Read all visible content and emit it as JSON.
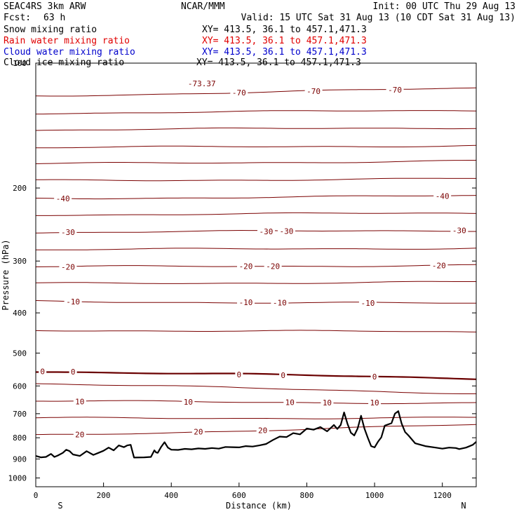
{
  "header": {
    "model": "SEAC4RS  3km ARW",
    "center": "NCAR/MMM",
    "init": "Init: 00 UTC Thu 29 Aug 13",
    "fcst_label": "Fcst:",
    "fcst_value": "63 h",
    "valid": "Valid: 15 UTC Sat 31 Aug 13 (10 CDT Sat 31 Aug 13)"
  },
  "fields": [
    {
      "name": "Snow mixing ratio",
      "xy": "XY= 413.5, 36.1 to 457.1,471.3",
      "color": "#000000"
    },
    {
      "name": "Rain water mixing ratio",
      "xy": "XY= 413.5, 36.1 to 457.1,471.3",
      "color": "#e00000"
    },
    {
      "name": "Cloud water mixing ratio",
      "xy": "XY= 413.5, 36.1 to 457.1,471.3",
      "color": "#0000cc"
    },
    {
      "name": "Cloud ice mixing ratio",
      "xy": "XY= 413.5, 36.1 to 457.1,471.3",
      "color": "#000000"
    }
  ],
  "chart_data": {
    "type": "line",
    "xlabel": "Distance (km)",
    "ylabel": "Pressure (hPa)",
    "xlim": [
      0,
      1300
    ],
    "ylim": [
      1050,
      100
    ],
    "y_scale": "log",
    "x_ticks": [
      0,
      200,
      400,
      600,
      800,
      1000,
      1200
    ],
    "y_ticks": [
      100,
      200,
      300,
      400,
      500,
      600,
      700,
      800,
      900,
      1000
    ],
    "x_direction_labels": {
      "left": "S",
      "right": "N"
    },
    "contour_field": "Temperature (C)",
    "contour_color": "#7a0000",
    "zero_line_color": "#6a0000",
    "isotherms": [
      {
        "level": -70,
        "pressure_left": 120,
        "pressure_right": 115,
        "labels": [
          {
            "x": 600,
            "text": "-70"
          },
          {
            "x": 820,
            "text": "-70"
          },
          {
            "x": 1060,
            "text": "-70"
          }
        ]
      },
      {
        "level": -65,
        "pressure_left": 132,
        "pressure_right": 130,
        "labels": []
      },
      {
        "level": -60,
        "pressure_left": 145,
        "pressure_right": 143,
        "labels": []
      },
      {
        "level": -55,
        "pressure_left": 160,
        "pressure_right": 158,
        "labels": []
      },
      {
        "level": -50,
        "pressure_left": 175,
        "pressure_right": 172,
        "labels": []
      },
      {
        "level": -45,
        "pressure_left": 192,
        "pressure_right": 190,
        "labels": []
      },
      {
        "level": -40,
        "pressure_left": 212,
        "pressure_right": 209,
        "labels": [
          {
            "x": 80,
            "text": "-40"
          },
          {
            "x": 1200,
            "text": "-40"
          }
        ]
      },
      {
        "level": -35,
        "pressure_left": 232,
        "pressure_right": 230,
        "labels": []
      },
      {
        "level": -30,
        "pressure_left": 256,
        "pressure_right": 253,
        "labels": [
          {
            "x": 95,
            "text": "-30"
          },
          {
            "x": 680,
            "text": "-30"
          },
          {
            "x": 740,
            "text": "-30"
          },
          {
            "x": 1250,
            "text": "-30"
          }
        ]
      },
      {
        "level": -25,
        "pressure_left": 282,
        "pressure_right": 279,
        "labels": []
      },
      {
        "level": -20,
        "pressure_left": 310,
        "pressure_right": 307,
        "labels": [
          {
            "x": 95,
            "text": "-20"
          },
          {
            "x": 620,
            "text": "-20"
          },
          {
            "x": 700,
            "text": "-20"
          },
          {
            "x": 1190,
            "text": "-20"
          }
        ]
      },
      {
        "level": -15,
        "pressure_left": 340,
        "pressure_right": 337,
        "labels": []
      },
      {
        "level": -10,
        "pressure_left": 375,
        "pressure_right": 380,
        "labels": [
          {
            "x": 110,
            "text": "-10"
          },
          {
            "x": 620,
            "text": "-10"
          },
          {
            "x": 720,
            "text": "-10"
          },
          {
            "x": 980,
            "text": "-10"
          }
        ]
      },
      {
        "level": -5,
        "pressure_left": 440,
        "pressure_right": 445,
        "labels": []
      },
      {
        "level": 0,
        "pressure_left": 553,
        "pressure_right": 575,
        "labels": [
          {
            "x": 20,
            "text": "0"
          },
          {
            "x": 110,
            "text": "0"
          },
          {
            "x": 600,
            "text": "0"
          },
          {
            "x": 730,
            "text": "0"
          },
          {
            "x": 1000,
            "text": "0"
          }
        ]
      },
      {
        "level": 5,
        "pressure_left": 592,
        "pressure_right": 625,
        "labels": []
      },
      {
        "level": 10,
        "pressure_left": 653,
        "pressure_right": 660,
        "labels": [
          {
            "x": 130,
            "text": "10"
          },
          {
            "x": 450,
            "text": "10"
          },
          {
            "x": 750,
            "text": "10"
          },
          {
            "x": 860,
            "text": "10"
          },
          {
            "x": 1000,
            "text": "10"
          }
        ]
      },
      {
        "level": 15,
        "pressure_left": 718,
        "pressure_right": 716,
        "labels": []
      },
      {
        "level": 20,
        "pressure_left": 790,
        "pressure_right": 745,
        "labels": [
          {
            "x": 130,
            "text": "20"
          },
          {
            "x": 480,
            "text": "20"
          },
          {
            "x": 670,
            "text": "20"
          }
        ]
      }
    ],
    "top_label": {
      "x": 490,
      "pressure": 112,
      "text": "-73.37"
    },
    "terrain": {
      "color": "#000000",
      "x": [
        0,
        15,
        30,
        45,
        55,
        65,
        80,
        90,
        100,
        110,
        130,
        150,
        170,
        185,
        200,
        215,
        230,
        245,
        260,
        270,
        280,
        285,
        290,
        320,
        340,
        350,
        355,
        360,
        370,
        380,
        390,
        400,
        420,
        440,
        460,
        480,
        500,
        520,
        540,
        560,
        580,
        600,
        620,
        640,
        660,
        680,
        700,
        720,
        740,
        760,
        780,
        800,
        820,
        840,
        860,
        880,
        890,
        900,
        910,
        920,
        930,
        940,
        950,
        960,
        970,
        980,
        990,
        1000,
        1010,
        1020,
        1030,
        1050,
        1060,
        1070,
        1080,
        1090,
        1100,
        1120,
        1150,
        1180,
        1200,
        1220,
        1240,
        1250,
        1270,
        1290,
        1300
      ],
      "pressure": [
        885,
        892,
        890,
        875,
        890,
        883,
        870,
        855,
        862,
        878,
        885,
        862,
        880,
        870,
        860,
        845,
        858,
        835,
        843,
        835,
        832,
        862,
        893,
        892,
        890,
        858,
        868,
        870,
        842,
        820,
        845,
        855,
        856,
        851,
        853,
        849,
        851,
        847,
        850,
        842,
        843,
        844,
        838,
        840,
        835,
        828,
        810,
        795,
        797,
        780,
        785,
        760,
        765,
        754,
        772,
        745,
        762,
        745,
        695,
        740,
        778,
        790,
        760,
        708,
        760,
        800,
        838,
        844,
        818,
        798,
        748,
        738,
        700,
        690,
        740,
        775,
        790,
        825,
        838,
        845,
        850,
        845,
        847,
        852,
        845,
        832,
        818
      ]
    }
  }
}
